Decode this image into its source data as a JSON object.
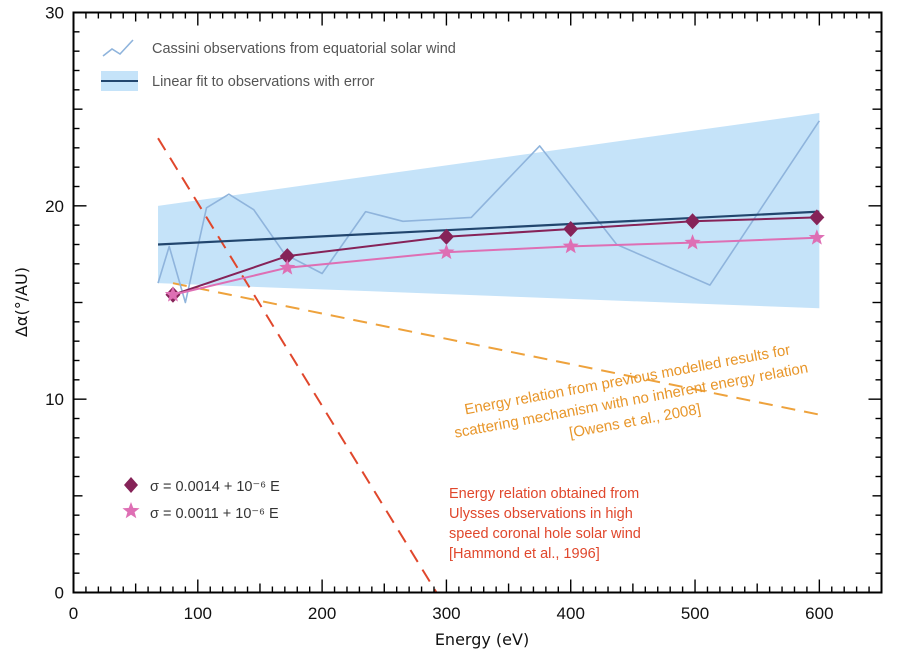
{
  "chart_data": {
    "type": "line",
    "xlabel": "Energy (eV)",
    "ylabel": "Δα(°/AU)",
    "xlim": [
      0,
      650
    ],
    "ylim": [
      0,
      30
    ],
    "xticks": [
      0,
      100,
      200,
      300,
      400,
      500,
      600
    ],
    "yticks": [
      0,
      10,
      20,
      30
    ],
    "grid": false,
    "legend": [
      {
        "key": "obs",
        "label": "Cassini observations from equatorial solar wind"
      },
      {
        "key": "fit",
        "label": "Linear fit to observations with error"
      }
    ],
    "error_band": {
      "x": [
        68,
        600
      ],
      "upper": [
        20.0,
        24.8
      ],
      "lower": [
        16.0,
        14.7
      ],
      "color": "#c5e3f9"
    },
    "series": [
      {
        "key": "obs",
        "color": "#8fb4dc",
        "x": [
          68,
          77,
          90,
          107,
          125,
          145,
          170,
          200,
          235,
          265,
          320,
          375,
          437,
          512,
          600
        ],
        "y": [
          16.0,
          17.9,
          15.0,
          19.9,
          20.6,
          19.8,
          17.5,
          16.5,
          19.7,
          19.2,
          19.4,
          23.1,
          18.0,
          15.9,
          24.4
        ]
      },
      {
        "key": "fit",
        "color": "#22466e",
        "x": [
          68,
          600
        ],
        "y": [
          18.0,
          19.7
        ]
      },
      {
        "key": "sigma1",
        "color": "#862358",
        "marker": "diamond",
        "x": [
          80,
          172,
          300,
          400,
          498,
          598
        ],
        "y": [
          15.4,
          17.4,
          18.4,
          18.8,
          19.2,
          19.4
        ]
      },
      {
        "key": "sigma2",
        "color": "#de6fb4",
        "marker": "star",
        "x": [
          80,
          172,
          300,
          400,
          498,
          598
        ],
        "y": [
          15.4,
          16.8,
          17.6,
          17.9,
          18.1,
          18.35
        ]
      },
      {
        "key": "owens",
        "color": "#eea23c",
        "dashed": true,
        "x": [
          80,
          600
        ],
        "y": [
          16.0,
          9.2
        ]
      },
      {
        "key": "hammond",
        "color": "#e0472c",
        "dashed": true,
        "x": [
          68,
          292
        ],
        "y": [
          23.5,
          0.0
        ]
      }
    ],
    "marker_legend": [
      {
        "key": "sigma1",
        "text": "σ = 0.0014 + 10⁻⁶ E"
      },
      {
        "key": "sigma2",
        "text": "σ = 0.0011 + 10⁻⁶ E"
      }
    ],
    "annotations": {
      "owens": [
        "Energy relation from previous modelled results for",
        "scattering mechanism with no inherent energy relation",
        "[Owens et al., 2008]"
      ],
      "hammond": [
        "Energy relation obtained from",
        "Ulysses observations in high",
        "speed coronal hole solar wind",
        "[Hammond et al., 1996]"
      ]
    }
  }
}
